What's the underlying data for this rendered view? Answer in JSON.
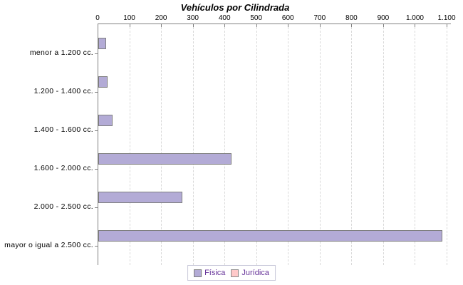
{
  "title": "Vehículos por Cilindrada",
  "chart_data": {
    "type": "bar",
    "orientation": "horizontal",
    "title": "Vehículos por Cilindrada",
    "categories": [
      "menor a 1.200 cc.",
      "1.200 - 1.400 cc.",
      "1.400 - 1.600 cc.",
      "1.600 - 2.000 cc.",
      "2.000 - 2.500 cc.",
      "mayor o igual a 2.500 cc."
    ],
    "series": [
      {
        "name": "Física",
        "color": "#b3abd6",
        "border_color": "#7f7f7f",
        "values": [
          20,
          25,
          40,
          415,
          260,
          1080
        ]
      },
      {
        "name": "Jurídica",
        "color": "#ffc9c9",
        "border_color": "#8a8a8a",
        "values": [
          0,
          0,
          0,
          0,
          0,
          0
        ]
      }
    ],
    "x_axis": {
      "position": "top",
      "min": 0,
      "max": 1100,
      "tick_values": [
        0,
        100,
        200,
        300,
        400,
        500,
        600,
        700,
        800,
        900,
        1000,
        1100
      ],
      "tick_labels": [
        "0",
        "100",
        "200",
        "300",
        "400",
        "500",
        "600",
        "700",
        "800",
        "900",
        "1.000",
        "1.100"
      ]
    },
    "grid": {
      "vertical_dashed": true,
      "color": "#d9d9d9"
    },
    "legend": {
      "position": "bottom",
      "entries": [
        "Física",
        "Jurídica"
      ]
    }
  },
  "colors": {
    "background": "#ffffff",
    "axis": "#808080",
    "text": "#000000",
    "legend_text": "#663399",
    "legend_border": "#c9c9da"
  }
}
